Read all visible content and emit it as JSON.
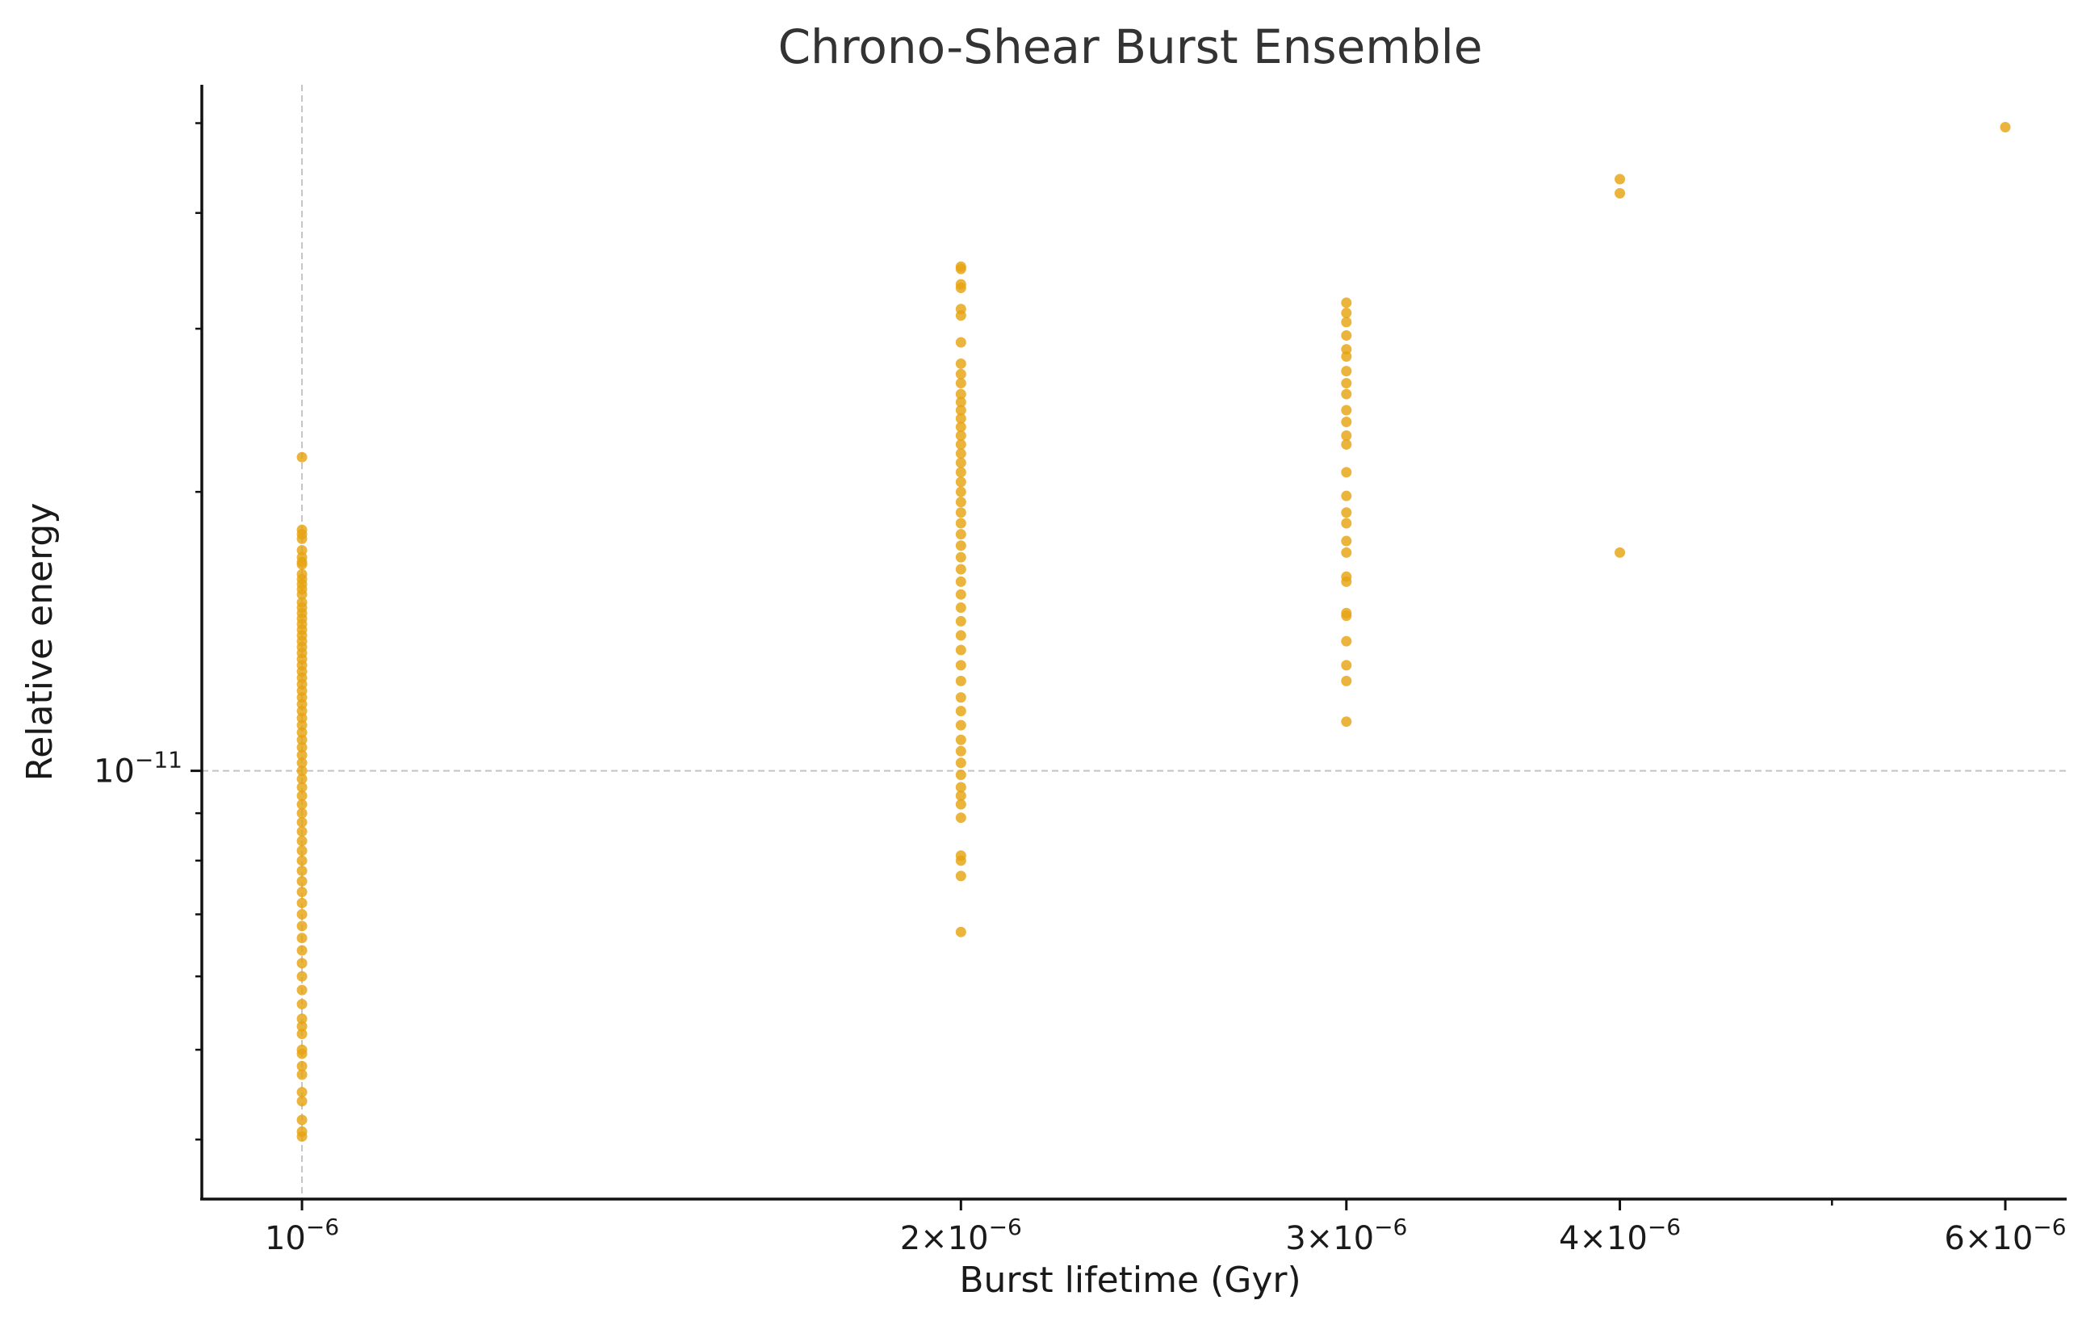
{
  "chart_data": {
    "type": "scatter",
    "title": "Chrono-Shear Burst Ensemble",
    "xlabel": "Burst lifetime (Gyr)",
    "ylabel": "Relative energy",
    "x_scale": "log",
    "y_scale": "log",
    "xlim": [
      9e-07,
      6.4e-06
    ],
    "ylim": [
      3.45e-12,
      5.5e-11
    ],
    "x_ticks": [
      {
        "value": 1e-06,
        "mantissa": "",
        "exponent": "−6"
      },
      {
        "value": 2e-06,
        "mantissa": "2×",
        "exponent": "−6"
      },
      {
        "value": 3e-06,
        "mantissa": "3×",
        "exponent": "−6"
      },
      {
        "value": 4e-06,
        "mantissa": "4×",
        "exponent": "−6"
      },
      {
        "value": 6e-06,
        "mantissa": "6×",
        "exponent": "−6"
      }
    ],
    "x_minor_ticks": [
      5e-06
    ],
    "y_ticks": [
      {
        "value": 1e-11,
        "exponent": "−11"
      }
    ],
    "y_minor_ticks": [
      4e-12,
      5e-12,
      6e-12,
      7e-12,
      8e-12,
      9e-12,
      2e-11,
      3e-11,
      4e-11,
      5e-11
    ],
    "grid": "dashed",
    "marker_color": "#e6a312",
    "series": [
      {
        "x": 1e-06,
        "y": [
          2.18e-11,
          1.82e-11,
          1.8e-11,
          1.78e-11,
          1.73e-11,
          1.7e-11,
          1.68e-11,
          1.67e-11,
          1.63e-11,
          1.61e-11,
          1.59e-11,
          1.57e-11,
          1.55e-11,
          1.52e-11,
          1.5e-11,
          1.48e-11,
          1.46e-11,
          1.44e-11,
          1.42e-11,
          1.4e-11,
          1.38e-11,
          1.36e-11,
          1.34e-11,
          1.32e-11,
          1.3e-11,
          1.28e-11,
          1.26e-11,
          1.24e-11,
          1.22e-11,
          1.2e-11,
          1.18e-11,
          1.16e-11,
          1.14e-11,
          1.12e-11,
          1.1e-11,
          1.08e-11,
          1.06e-11,
          1.04e-11,
          1.02e-11,
          1e-11,
          9.8e-12,
          9.6e-12,
          9.4e-12,
          9.2e-12,
          9e-12,
          8.8e-12,
          8.6e-12,
          8.4e-12,
          8.2e-12,
          8e-12,
          7.8e-12,
          7.6e-12,
          7.4e-12,
          7.2e-12,
          7e-12,
          6.8e-12,
          6.6e-12,
          6.4e-12,
          6.2e-12,
          6e-12,
          5.8e-12,
          5.6e-12,
          5.4e-12,
          5.3e-12,
          5.2e-12,
          5e-12,
          4.95e-12,
          4.8e-12,
          4.7e-12,
          4.5e-12,
          4.4e-12,
          4.2e-12,
          4.08e-12,
          4.03e-12
        ]
      },
      {
        "x": 2e-06,
        "y": [
          3.5e-11,
          3.48e-11,
          3.35e-11,
          3.32e-11,
          3.15e-11,
          3.1e-11,
          2.9e-11,
          2.75e-11,
          2.68e-11,
          2.62e-11,
          2.55e-11,
          2.5e-11,
          2.45e-11,
          2.4e-11,
          2.35e-11,
          2.3e-11,
          2.25e-11,
          2.2e-11,
          2.15e-11,
          2.1e-11,
          2.05e-11,
          2e-11,
          1.95e-11,
          1.9e-11,
          1.85e-11,
          1.8e-11,
          1.75e-11,
          1.7e-11,
          1.65e-11,
          1.6e-11,
          1.55e-11,
          1.5e-11,
          1.45e-11,
          1.4e-11,
          1.35e-11,
          1.3e-11,
          1.25e-11,
          1.2e-11,
          1.16e-11,
          1.12e-11,
          1.08e-11,
          1.05e-11,
          1.02e-11,
          9.9e-12,
          9.6e-12,
          9.4e-12,
          9.2e-12,
          8.9e-12,
          8.1e-12,
          8e-12,
          7.7e-12,
          6.7e-12
        ]
      },
      {
        "x": 3e-06,
        "y": [
          3.2e-11,
          3.12e-11,
          3.05e-11,
          2.95e-11,
          2.85e-11,
          2.8e-11,
          2.7e-11,
          2.62e-11,
          2.55e-11,
          2.45e-11,
          2.38e-11,
          2.3e-11,
          2.25e-11,
          2.1e-11,
          1.98e-11,
          1.9e-11,
          1.85e-11,
          1.77e-11,
          1.72e-11,
          1.62e-11,
          1.6e-11,
          1.48e-11,
          1.47e-11,
          1.38e-11,
          1.3e-11,
          1.25e-11,
          1.13e-11
        ]
      },
      {
        "x": 4e-06,
        "y": [
          4.35e-11,
          4.2e-11,
          1.72e-11
        ]
      },
      {
        "x": 6e-06,
        "y": [
          4.95e-11
        ]
      }
    ]
  }
}
